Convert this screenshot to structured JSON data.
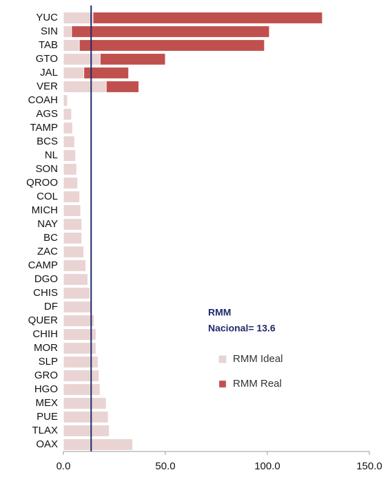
{
  "chart_data": {
    "type": "bar",
    "orientation": "horizontal",
    "categories": [
      "YUC",
      "SIN",
      "TAB",
      "GTO",
      "JAL",
      "VER",
      "COAH",
      "AGS",
      "TAMP",
      "BCS",
      "NL",
      "SON",
      "QROO",
      "COL",
      "MICH",
      "NAY",
      "BC",
      "ZAC",
      "CAMP",
      "DGO",
      "CHIS",
      "DF",
      "QUER",
      "CHIH",
      "MOR",
      "SLP",
      "GRO",
      "HGO",
      "MEX",
      "PUE",
      "TLAX",
      "OAX"
    ],
    "series": [
      {
        "name": "RMM Real",
        "color": "#c0504d",
        "values": [
          127,
          101,
          98.6,
          50,
          32,
          37,
          null,
          null,
          null,
          null,
          null,
          null,
          null,
          null,
          null,
          null,
          null,
          null,
          null,
          null,
          null,
          null,
          null,
          null,
          null,
          null,
          null,
          null,
          null,
          null,
          null,
          null
        ]
      },
      {
        "name": "RMM Ideal",
        "color": "#e9d3d3",
        "values": [
          14.5,
          4,
          7.8,
          18,
          10,
          21,
          2,
          4,
          4.5,
          5.5,
          6,
          6.5,
          7,
          8,
          8.5,
          9,
          9,
          10,
          11,
          12,
          13,
          13.5,
          15,
          16,
          16,
          17,
          17.5,
          18,
          21,
          22,
          22.5,
          34
        ]
      }
    ],
    "xlim": [
      0,
      150
    ],
    "xticks": [
      {
        "value": 0,
        "label": "0.0"
      },
      {
        "value": 50,
        "label": "50.0"
      },
      {
        "value": 100,
        "label": "100.0"
      },
      {
        "value": 150,
        "label": "150.0"
      }
    ],
    "reference_line": {
      "value": 13.6,
      "color": "#1f2a6b"
    },
    "annotation": [
      "RMM",
      "Nacional= 13.6"
    ]
  }
}
